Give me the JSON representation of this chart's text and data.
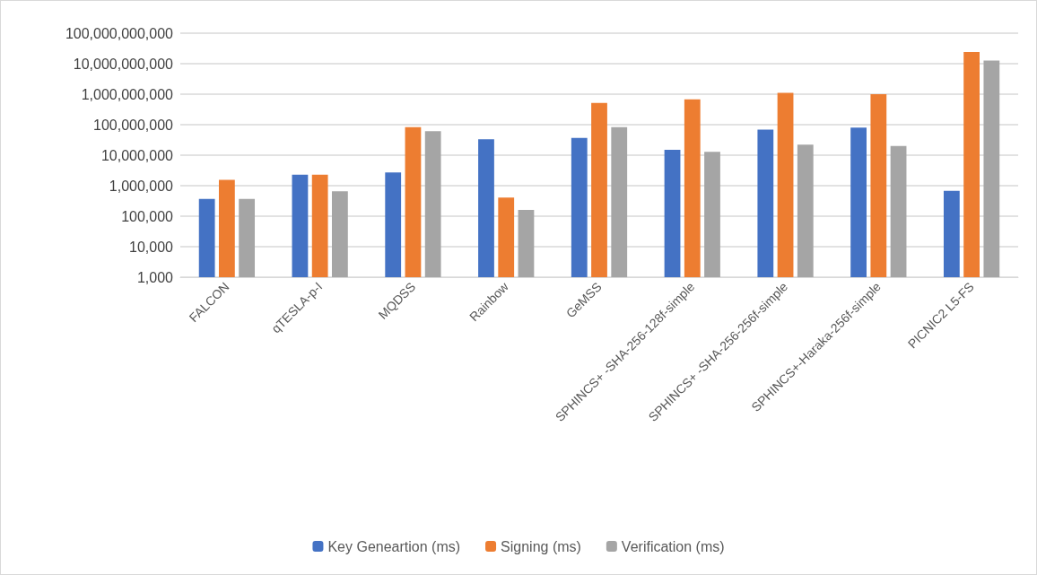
{
  "chart_data": {
    "type": "bar",
    "categories": [
      "FALCON",
      "qTESLA-p-I",
      "MQDSS",
      "Rainbow",
      "GeMSS",
      "SPHINCS+ -SHA-256-128f-simple",
      "SPHINCS+ -SHA-256-256f-simple",
      "SPHINCS+-Haraka-256f-simple",
      "PICNIC2 L5-FS"
    ],
    "series": [
      {
        "name": "Key Geneartion (ms)",
        "color": "#4472c4",
        "values": [
          370000,
          2300000,
          2700000,
          33000000,
          37000000,
          15000000,
          69000000,
          80000000,
          680000
        ]
      },
      {
        "name": "Signing (ms)",
        "color": "#ed7d31",
        "values": [
          1550000,
          2300000,
          83000000,
          410000,
          520000000,
          680000000,
          1100000000,
          1000000000,
          24000000000
        ]
      },
      {
        "name": "Verification (ms)",
        "color": "#a5a5a5",
        "values": [
          370000,
          650000,
          61000000,
          160000,
          83000000,
          13000000,
          22000000,
          20000000,
          12600000000
        ]
      }
    ],
    "log": "y",
    "ylim": [
      1000,
      100000000000
    ],
    "yticks": [
      {
        "value": 1000,
        "label": "1,000"
      },
      {
        "value": 10000,
        "label": "10,000"
      },
      {
        "value": 100000,
        "label": "100,000"
      },
      {
        "value": 1000000,
        "label": "1,000,000"
      },
      {
        "value": 10000000,
        "label": "10,000,000"
      },
      {
        "value": 100000000,
        "label": "100,000,000"
      },
      {
        "value": 1000000000,
        "label": "1,000,000,000"
      },
      {
        "value": 10000000000,
        "label": "10,000,000,000"
      },
      {
        "value": 100000000000,
        "label": "100,000,000,000"
      }
    ],
    "grid": "y",
    "legend": "bottom"
  }
}
